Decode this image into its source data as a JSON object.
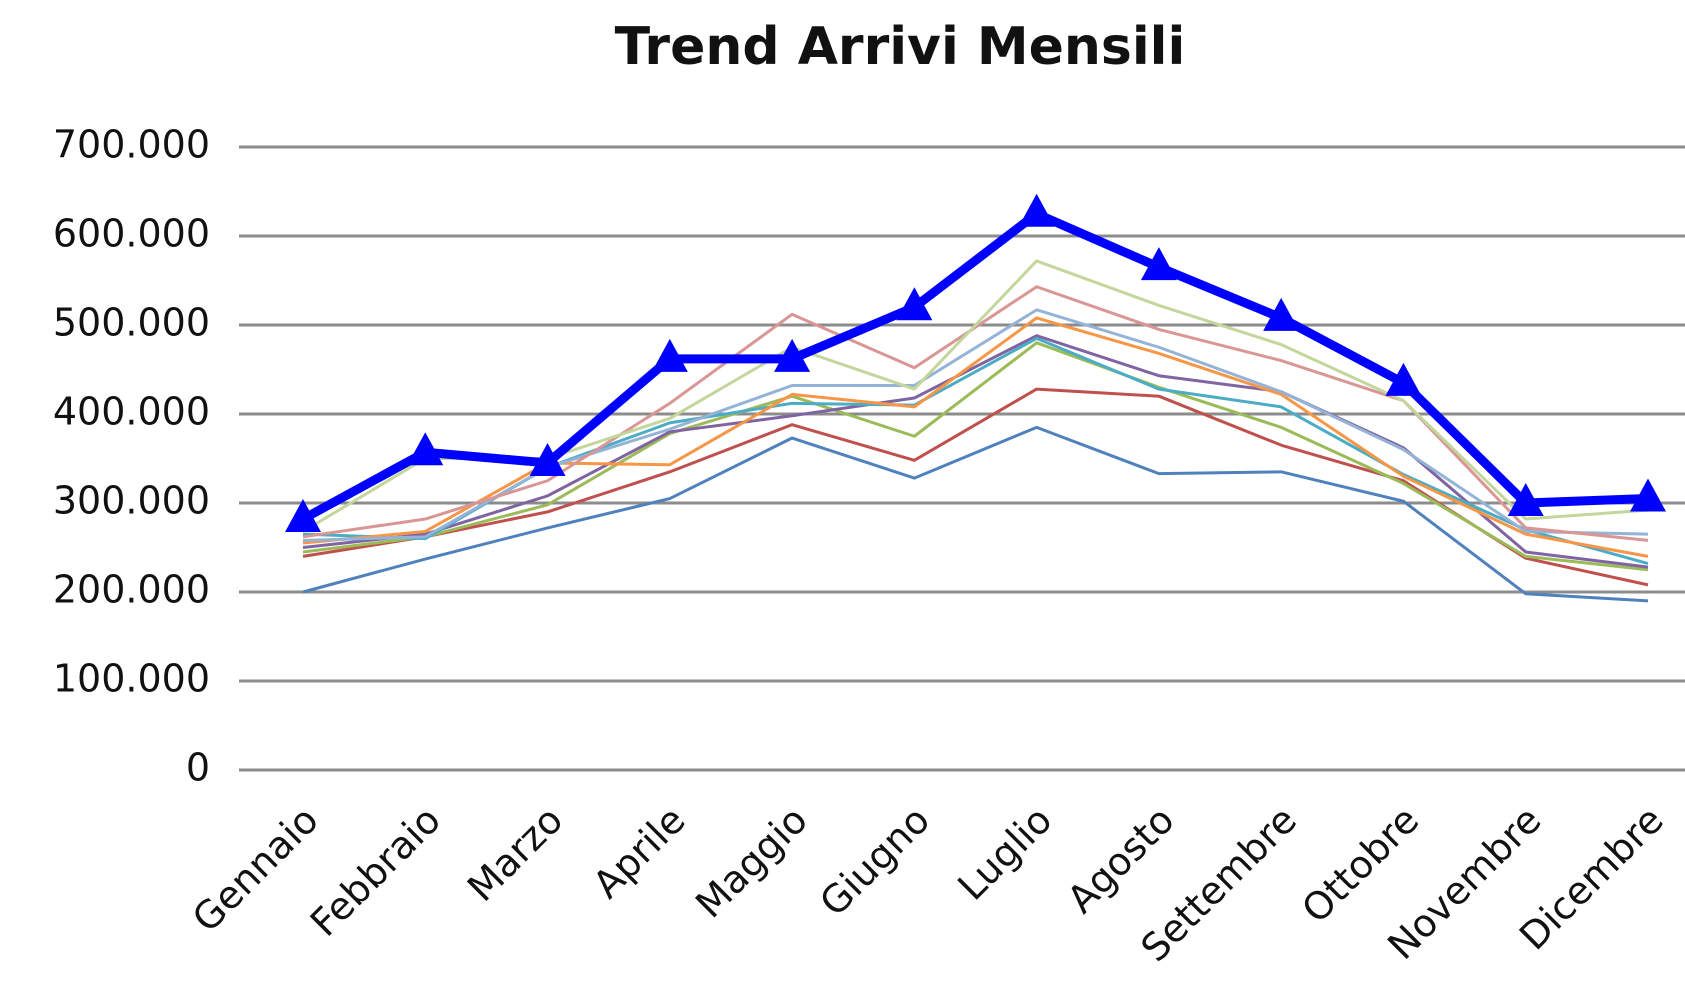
{
  "chart_data": {
    "type": "line",
    "title": "Trend Arrivi Mensili",
    "categories": [
      "Gennaio",
      "Febbraio",
      "Marzo",
      "Aprile",
      "Maggio",
      "Giugno",
      "Luglio",
      "Agosto",
      "Settembre",
      "Ottobre",
      "Novembre",
      "Dicembre"
    ],
    "ylim": [
      0,
      700000
    ],
    "yticks": [
      0,
      {
        "value": 100000,
        "label": "100.000"
      },
      {
        "value": 200000,
        "label": "200.000"
      },
      {
        "value": 300000,
        "label": "300.000"
      },
      {
        "value": 400000,
        "label": "400.000"
      },
      {
        "value": 500000,
        "label": "500.000"
      },
      {
        "value": 600000,
        "label": "600.000"
      },
      {
        "value": 700000,
        "label": "700.000"
      }
    ],
    "grid": true,
    "series": [
      {
        "color": "#4f81bd",
        "values": [
          200000,
          237000,
          272000,
          305000,
          373000,
          328000,
          385000,
          333000,
          335000,
          302000,
          198000,
          190000
        ]
      },
      {
        "color": "#c0504d",
        "values": [
          240000,
          262000,
          290000,
          335000,
          388000,
          348000,
          428000,
          420000,
          365000,
          325000,
          238000,
          208000
        ]
      },
      {
        "color": "#9bbb59",
        "values": [
          245000,
          262000,
          298000,
          378000,
          420000,
          375000,
          480000,
          430000,
          385000,
          322000,
          240000,
          225000
        ]
      },
      {
        "color": "#8064a2",
        "values": [
          250000,
          265000,
          308000,
          380000,
          398000,
          418000,
          488000,
          443000,
          425000,
          362000,
          245000,
          228000
        ]
      },
      {
        "color": "#4bacc6",
        "values": [
          265000,
          260000,
          340000,
          390000,
          412000,
          410000,
          485000,
          428000,
          408000,
          332000,
          270000,
          232000
        ]
      },
      {
        "color": "#f79646",
        "values": [
          255000,
          268000,
          345000,
          343000,
          422000,
          408000,
          508000,
          468000,
          422000,
          330000,
          265000,
          240000
        ]
      },
      {
        "color": "#95b3d7",
        "values": [
          258000,
          262000,
          340000,
          383000,
          432000,
          432000,
          517000,
          475000,
          425000,
          360000,
          268000,
          265000
        ]
      },
      {
        "color": "#d99694",
        "values": [
          262000,
          282000,
          325000,
          412000,
          512000,
          452000,
          543000,
          495000,
          460000,
          415000,
          272000,
          258000
        ]
      },
      {
        "color": "#c3d69b",
        "values": [
          268000,
          350000,
          350000,
          395000,
          475000,
          428000,
          572000,
          522000,
          478000,
          415000,
          282000,
          292000
        ]
      },
      {
        "color": "#0000ff",
        "values": [
          282000,
          357000,
          345000,
          462000,
          462000,
          520000,
          625000,
          565000,
          508000,
          435000,
          300000,
          305000
        ],
        "marker": "triangle"
      }
    ]
  }
}
